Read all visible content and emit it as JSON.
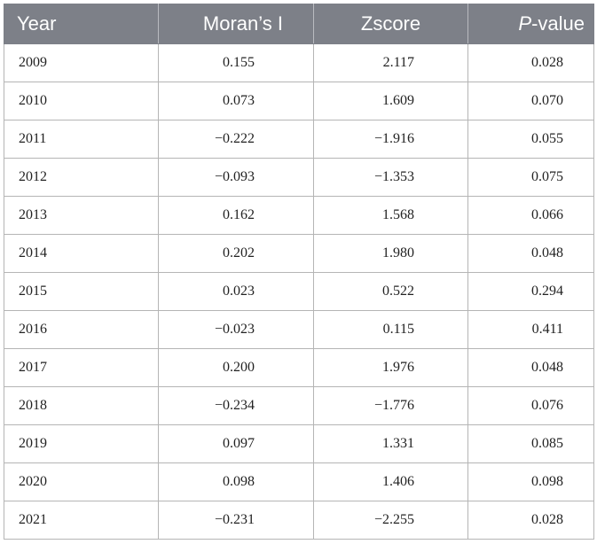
{
  "table": {
    "headers": {
      "year": "Year",
      "moran": "Moran’s I",
      "zscore": "Zscore",
      "p_italic": "P",
      "p_rest": "-value"
    },
    "rows": [
      {
        "year": "2009",
        "moran": "0.155",
        "z": "2.117",
        "p": "0.028"
      },
      {
        "year": "2010",
        "moran": "0.073",
        "z": "1.609",
        "p": "0.070"
      },
      {
        "year": "2011",
        "moran": "−0.222",
        "z": "−1.916",
        "p": "0.055"
      },
      {
        "year": "2012",
        "moran": "−0.093",
        "z": "−1.353",
        "p": "0.075"
      },
      {
        "year": "2013",
        "moran": "0.162",
        "z": "1.568",
        "p": "0.066"
      },
      {
        "year": "2014",
        "moran": "0.202",
        "z": "1.980",
        "p": "0.048"
      },
      {
        "year": "2015",
        "moran": "0.023",
        "z": "0.522",
        "p": "0.294"
      },
      {
        "year": "2016",
        "moran": "−0.023",
        "z": "0.115",
        "p": "0.411"
      },
      {
        "year": "2017",
        "moran": "0.200",
        "z": "1.976",
        "p": "0.048"
      },
      {
        "year": "2018",
        "moran": "−0.234",
        "z": "−1.776",
        "p": "0.076"
      },
      {
        "year": "2019",
        "moran": "0.097",
        "z": "1.331",
        "p": "0.085"
      },
      {
        "year": "2020",
        "moran": "0.098",
        "z": "1.406",
        "p": "0.098"
      },
      {
        "year": "2021",
        "moran": "−0.231",
        "z": "−2.255",
        "p": "0.028"
      }
    ]
  },
  "colors": {
    "header_bg": "#7d8088",
    "header_text": "#ffffff",
    "grid": "#b5b5b5"
  }
}
